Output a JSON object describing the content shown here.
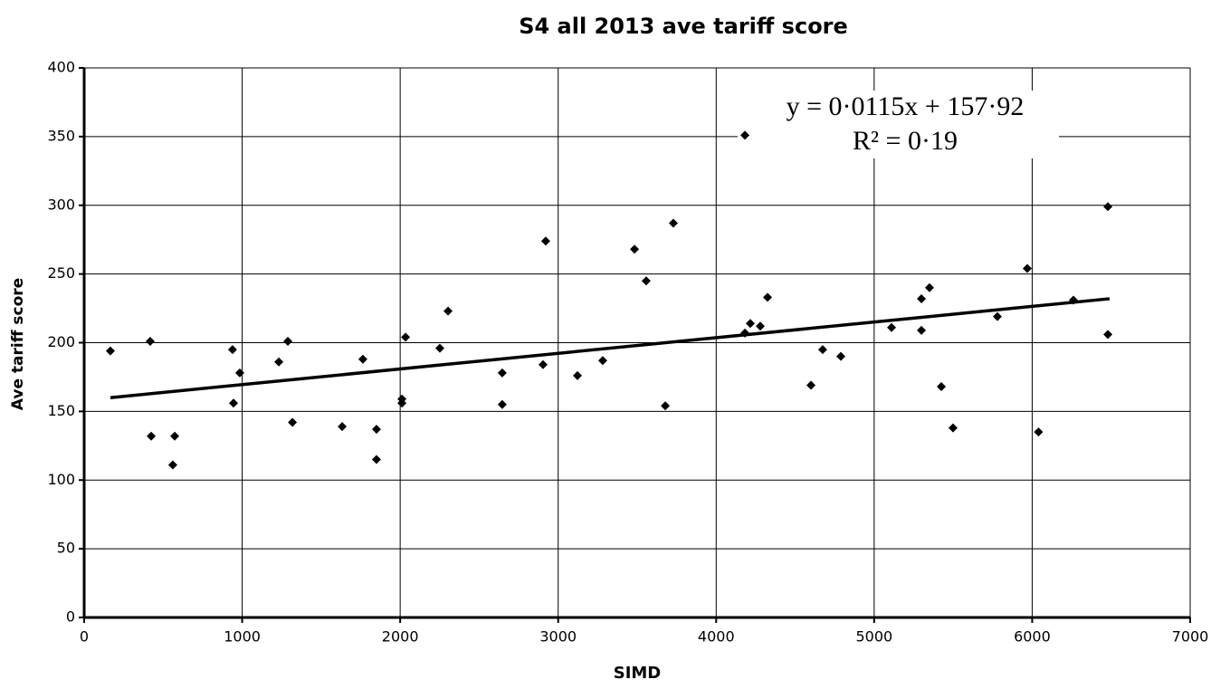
{
  "chart_data": {
    "type": "scatter",
    "title": "S4 all 2013 ave tariff score",
    "x_label": "SIMD",
    "y_label": "Ave tariff score",
    "annotations": [
      "y = 0·0115x + 157·92",
      "R² = 0·19"
    ],
    "xlim": [
      0,
      7000
    ],
    "xticks": [
      0,
      1000,
      2000,
      3000,
      4000,
      5000,
      6000,
      7000
    ],
    "ylim": [
      0,
      400
    ],
    "yticks": [
      0,
      50,
      100,
      150,
      200,
      250,
      300,
      350,
      400
    ],
    "grid": true,
    "color": "#000000",
    "x": [
      166,
      418,
      424,
      573,
      561,
      939,
      945,
      985,
      1232,
      1289,
      1318,
      1633,
      1764,
      1850,
      1850,
      2034,
      2011,
      2011,
      2251,
      2303,
      2646,
      2646,
      2904,
      2921,
      3122,
      3282,
      3483,
      3557,
      3678,
      3729,
      4182,
      4182,
      4216,
      4279,
      4325,
      4600,
      4674,
      4789,
      5110,
      5299,
      5299,
      5350,
      5425,
      5499,
      5780,
      5969,
      6040,
      6261,
      6479,
      6479
    ],
    "values": [
      194,
      201,
      132,
      132,
      111,
      195,
      156,
      178,
      186,
      201,
      142,
      139,
      188,
      137,
      115,
      204,
      159,
      156,
      196,
      223,
      178,
      155,
      184,
      274,
      176,
      187,
      268,
      245,
      154,
      287,
      351,
      207,
      214,
      212,
      233,
      169,
      195,
      190,
      211,
      232,
      209,
      240,
      168,
      138,
      219,
      254,
      135,
      231,
      299,
      206
    ],
    "trendline": {
      "x": [
        166,
        6490
      ],
      "values": [
        160,
        232
      ]
    }
  }
}
